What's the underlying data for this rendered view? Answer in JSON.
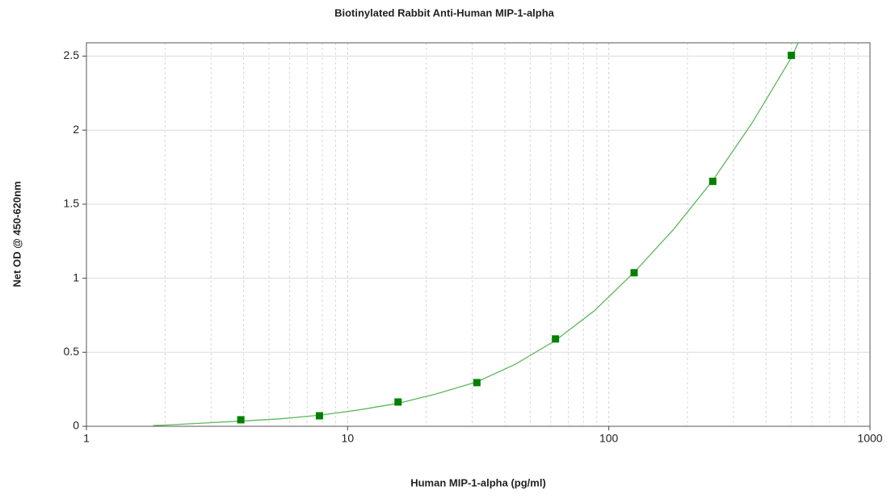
{
  "chart_data": {
    "type": "scatter",
    "title": "Biotinylated Rabbit Anti-Human MIP-1-alpha",
    "x_label": "Human MIP-1-alpha (pg/ml)",
    "y_label": "Net OD @ 450-620nm",
    "x_scale": "log",
    "xlim": [
      1,
      1000
    ],
    "xticks": [
      1,
      10,
      100,
      1000
    ],
    "xminorticks": [
      2,
      3,
      4,
      5,
      6,
      7,
      8,
      9,
      20,
      30,
      40,
      50,
      60,
      70,
      80,
      90,
      200,
      300,
      400,
      500,
      600,
      700,
      800,
      900
    ],
    "ylim": [
      0,
      2.59
    ],
    "yticks": [
      0,
      0.5,
      1,
      1.5,
      2,
      2.5
    ],
    "grid": true,
    "series": [
      {
        "color": "#008000",
        "marker": "square",
        "x": [
          3.9,
          7.8,
          15.6,
          31.25,
          62.5,
          125,
          250,
          500
        ],
        "values": [
          0.044,
          0.071,
          0.164,
          0.295,
          0.59,
          1.037,
          1.654,
          2.505
        ]
      },
      {
        "color": "#5cb85c",
        "marker": "none",
        "x": [
          1.8,
          2,
          3.9,
          5.5,
          7.8,
          11,
          15.6,
          22,
          31.25,
          44,
          62.5,
          88,
          125,
          177,
          250,
          354,
          500,
          531
        ],
        "values": [
          0.005,
          0.008,
          0.035,
          0.05,
          0.075,
          0.11,
          0.155,
          0.22,
          0.3,
          0.42,
          0.58,
          0.78,
          1.04,
          1.33,
          1.66,
          2.05,
          2.49,
          2.59
        ]
      }
    ]
  }
}
